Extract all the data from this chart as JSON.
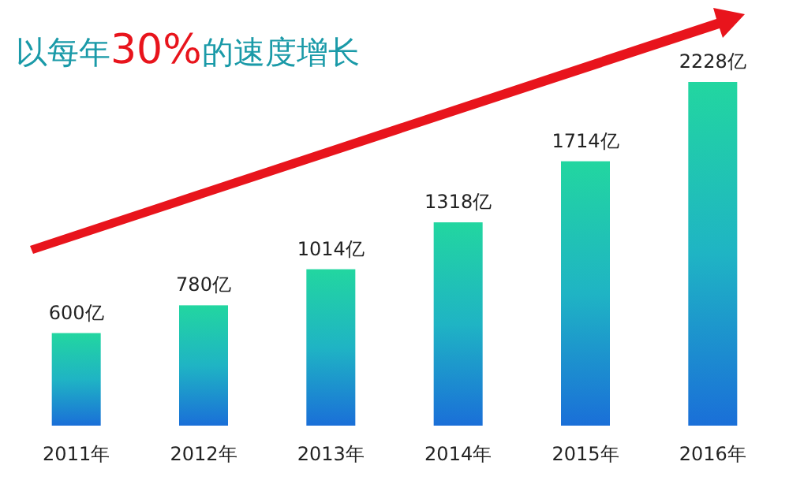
{
  "chart_data": {
    "type": "bar",
    "title": "以每年30%的速度增长",
    "categories": [
      "2011年",
      "2012年",
      "2013年",
      "2014年",
      "2015年",
      "2016年"
    ],
    "values": [
      600,
      780,
      1014,
      1318,
      1714,
      2228
    ],
    "value_labels": [
      "600亿",
      "780亿",
      "1014亿",
      "1318亿",
      "1714亿",
      "2228亿"
    ],
    "color": "#1fb4c4"
  }
}
